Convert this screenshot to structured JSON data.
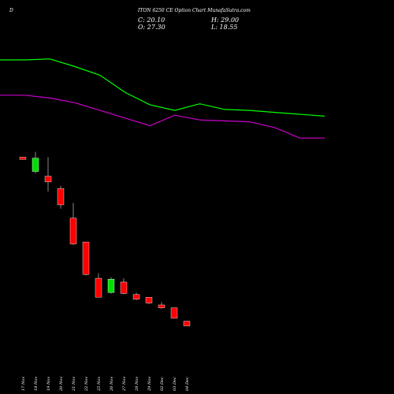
{
  "header": {
    "prefix": "D",
    "title": "ITON 6250 CE Option Chart MunafaSutra.com",
    "close": "C: 20.10",
    "open": "O: 27.30",
    "high": "H: 29.00",
    "low": "L: 18.55"
  },
  "colors": {
    "background": "#000000",
    "up": "#00dd00",
    "down": "#ff0000",
    "ma_short": "#00ff00",
    "ma_long": "#cc00cc",
    "wick": "#aaaaaa"
  },
  "chart_data": {
    "type": "candlestick",
    "title": "",
    "xlabel": "",
    "ylabel": "",
    "ylim": [
      0,
      104
    ],
    "categories": [
      "17 Nov",
      "18 Nov",
      "19 Nov",
      "20 Nov",
      "21 Nov",
      "22 Nov",
      "25 Nov",
      "26 Nov",
      "27 Nov",
      "28 Nov",
      "29 Nov",
      "02 Dec",
      "03 Dec",
      "04 Dec"
    ],
    "candles": [
      {
        "date": "17 Nov",
        "open": 52.0,
        "high": 52.0,
        "low": 50.8,
        "close": 50.8
      },
      {
        "date": "18 Nov",
        "open": 44.5,
        "high": 54.8,
        "low": 43.5,
        "close": 51.5
      },
      {
        "date": "19 Nov",
        "open": 42.0,
        "high": 52.0,
        "low": 34.0,
        "close": 39.0
      },
      {
        "date": "20 Nov",
        "open": 35.5,
        "high": 37.0,
        "low": 25.0,
        "close": 27.0
      },
      {
        "date": "21 Nov",
        "open": 20.0,
        "high": 28.0,
        "low": 6.0,
        "close": 6.5
      },
      {
        "date": "22 Nov",
        "open": 7.5,
        "high": 7.5,
        "low": -10.0,
        "close": -9.5
      },
      {
        "date": "25 Nov",
        "open": -11.5,
        "high": -9.0,
        "low": -21.5,
        "close": -21.5
      },
      {
        "date": "26 Nov",
        "open": -19.0,
        "high": -11.0,
        "low": -19.5,
        "close": -12.0
      },
      {
        "date": "27 Nov",
        "open": -13.5,
        "high": -11.5,
        "low": -20.0,
        "close": -19.5
      },
      {
        "date": "28 Nov",
        "open": -20.0,
        "high": -19.0,
        "low": -23.0,
        "close": -22.5
      },
      {
        "date": "29 Nov",
        "open": -21.5,
        "high": -21.5,
        "low": -25.0,
        "close": -24.5
      },
      {
        "date": "02 Dec",
        "open": -25.5,
        "high": -24.0,
        "low": -27.5,
        "close": -27.0
      },
      {
        "date": "03 Dec",
        "open": -27.0,
        "high": -27.0,
        "low": -32.5,
        "close": -32.5
      },
      {
        "date": "04 Dec",
        "open": -34.0,
        "high": -34.0,
        "low": -36.5,
        "close": -36.5
      }
    ],
    "series": [
      {
        "type": "line",
        "values": [
          103.0,
          103.0,
          103.5,
          99.5,
          95.0,
          86.0,
          79.5,
          76.5,
          80.0,
          77.0,
          76.5,
          75.5,
          74.5,
          73.5
        ]
      },
      {
        "type": "line",
        "values": [
          84.5,
          84.5,
          83.0,
          80.5,
          76.5,
          72.5,
          68.5,
          74.0,
          71.5,
          71.0,
          70.5,
          67.5,
          62.0,
          62.0
        ]
      }
    ]
  }
}
